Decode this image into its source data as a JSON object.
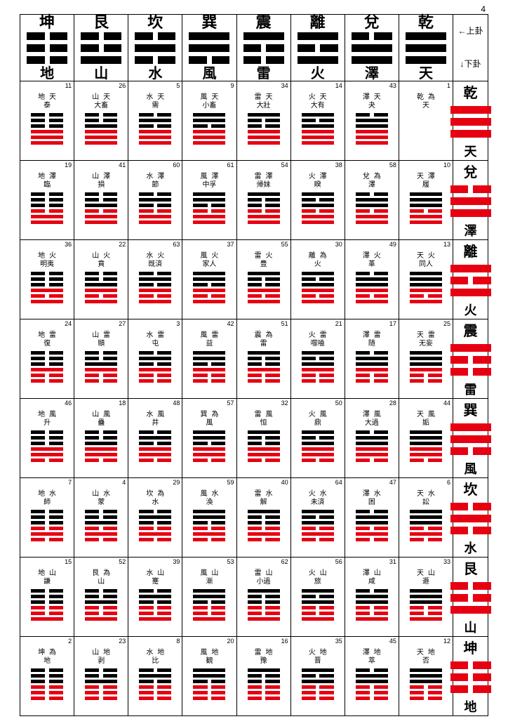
{
  "page_number": "4",
  "color_red": "#e60012",
  "color_black": "#000000",
  "legend_top": "←上卦",
  "legend_bottom": "↓下卦",
  "trigrams": [
    {
      "char": "坤",
      "elem": "地",
      "lines": "000"
    },
    {
      "char": "艮",
      "elem": "山",
      "lines": "001"
    },
    {
      "char": "坎",
      "elem": "水",
      "lines": "010"
    },
    {
      "char": "巽",
      "elem": "風",
      "lines": "110"
    },
    {
      "char": "震",
      "elem": "雷",
      "lines": "100"
    },
    {
      "char": "離",
      "elem": "火",
      "lines": "101"
    },
    {
      "char": "兌",
      "elem": "澤",
      "lines": "011"
    },
    {
      "char": "乾",
      "elem": "天",
      "lines": "111"
    }
  ],
  "rows": [
    {
      "char": "乾",
      "elem": "天",
      "lines": "111"
    },
    {
      "char": "兌",
      "elem": "澤",
      "lines": "011"
    },
    {
      "char": "離",
      "elem": "火",
      "lines": "101"
    },
    {
      "char": "震",
      "elem": "雷",
      "lines": "100"
    },
    {
      "char": "巽",
      "elem": "風",
      "lines": "110"
    },
    {
      "char": "坎",
      "elem": "水",
      "lines": "010"
    },
    {
      "char": "艮",
      "elem": "山",
      "lines": "001"
    },
    {
      "char": "坤",
      "elem": "地",
      "lines": "000"
    }
  ],
  "cells": [
    [
      {
        "n": 11,
        "t": "地天",
        "m": "泰"
      },
      {
        "n": 26,
        "t": "山天",
        "m": "大畜"
      },
      {
        "n": 5,
        "t": "水天",
        "m": "需"
      },
      {
        "n": 9,
        "t": "風天",
        "m": "小畜"
      },
      {
        "n": 34,
        "t": "雷天",
        "m": "大壯"
      },
      {
        "n": 14,
        "t": "火天",
        "m": "大有"
      },
      {
        "n": 43,
        "t": "澤天",
        "m": "夬"
      },
      {
        "n": 1,
        "t": "乾為",
        "m": "天"
      }
    ],
    [
      {
        "n": 19,
        "t": "地澤",
        "m": "臨"
      },
      {
        "n": 41,
        "t": "山澤",
        "m": "損"
      },
      {
        "n": 60,
        "t": "水澤",
        "m": "節"
      },
      {
        "n": 61,
        "t": "風澤",
        "m": "中孚"
      },
      {
        "n": 54,
        "t": "雷澤",
        "m": "帰妹"
      },
      {
        "n": 38,
        "t": "火澤",
        "m": "睽"
      },
      {
        "n": 58,
        "t": "兌為",
        "m": "澤"
      },
      {
        "n": 10,
        "t": "天澤",
        "m": "履"
      }
    ],
    [
      {
        "n": 36,
        "t": "地火",
        "m": "明夷"
      },
      {
        "n": 22,
        "t": "山火",
        "m": "賁"
      },
      {
        "n": 63,
        "t": "水火",
        "m": "既済"
      },
      {
        "n": 37,
        "t": "風火",
        "m": "家人"
      },
      {
        "n": 55,
        "t": "雷火",
        "m": "豊"
      },
      {
        "n": 30,
        "t": "離為",
        "m": "火"
      },
      {
        "n": 49,
        "t": "澤火",
        "m": "革"
      },
      {
        "n": 13,
        "t": "天火",
        "m": "同人"
      }
    ],
    [
      {
        "n": 24,
        "t": "地雷",
        "m": "復"
      },
      {
        "n": 27,
        "t": "山雷",
        "m": "頤"
      },
      {
        "n": 3,
        "t": "水雷",
        "m": "屯"
      },
      {
        "n": 42,
        "t": "風雷",
        "m": "益"
      },
      {
        "n": 51,
        "t": "震為",
        "m": "雷"
      },
      {
        "n": 21,
        "t": "火雷",
        "m": "噬嗑"
      },
      {
        "n": 17,
        "t": "澤雷",
        "m": "随"
      },
      {
        "n": 25,
        "t": "天雷",
        "m": "无妄"
      }
    ],
    [
      {
        "n": 46,
        "t": "地風",
        "m": "升"
      },
      {
        "n": 18,
        "t": "山風",
        "m": "蠱"
      },
      {
        "n": 48,
        "t": "水風",
        "m": "井"
      },
      {
        "n": 57,
        "t": "巽為",
        "m": "風"
      },
      {
        "n": 32,
        "t": "雷風",
        "m": "恒"
      },
      {
        "n": 50,
        "t": "火風",
        "m": "鼎"
      },
      {
        "n": 28,
        "t": "澤風",
        "m": "大過"
      },
      {
        "n": 44,
        "t": "天風",
        "m": "姤"
      }
    ],
    [
      {
        "n": 7,
        "t": "地水",
        "m": "師"
      },
      {
        "n": 4,
        "t": "山水",
        "m": "蒙"
      },
      {
        "n": 29,
        "t": "坎為",
        "m": "水"
      },
      {
        "n": 59,
        "t": "風水",
        "m": "渙"
      },
      {
        "n": 40,
        "t": "雷水",
        "m": "解"
      },
      {
        "n": 64,
        "t": "火水",
        "m": "未済"
      },
      {
        "n": 47,
        "t": "澤水",
        "m": "困"
      },
      {
        "n": 6,
        "t": "天水",
        "m": "訟"
      }
    ],
    [
      {
        "n": 15,
        "t": "地山",
        "m": "謙"
      },
      {
        "n": 52,
        "t": "艮為",
        "m": "山"
      },
      {
        "n": 39,
        "t": "水山",
        "m": "蹇"
      },
      {
        "n": 53,
        "t": "風山",
        "m": "漸"
      },
      {
        "n": 62,
        "t": "雷山",
        "m": "小過"
      },
      {
        "n": 56,
        "t": "火山",
        "m": "旅"
      },
      {
        "n": 31,
        "t": "澤山",
        "m": "咸"
      },
      {
        "n": 33,
        "t": "天山",
        "m": "遯"
      }
    ],
    [
      {
        "n": 2,
        "t": "坤為",
        "m": "地"
      },
      {
        "n": 23,
        "t": "山地",
        "m": "剥"
      },
      {
        "n": 8,
        "t": "水地",
        "m": "比"
      },
      {
        "n": 20,
        "t": "風地",
        "m": "観"
      },
      {
        "n": 16,
        "t": "雷地",
        "m": "豫"
      },
      {
        "n": 35,
        "t": "火地",
        "m": "晋"
      },
      {
        "n": 45,
        "t": "澤地",
        "m": "萃"
      },
      {
        "n": 12,
        "t": "天地",
        "m": "否"
      }
    ]
  ]
}
